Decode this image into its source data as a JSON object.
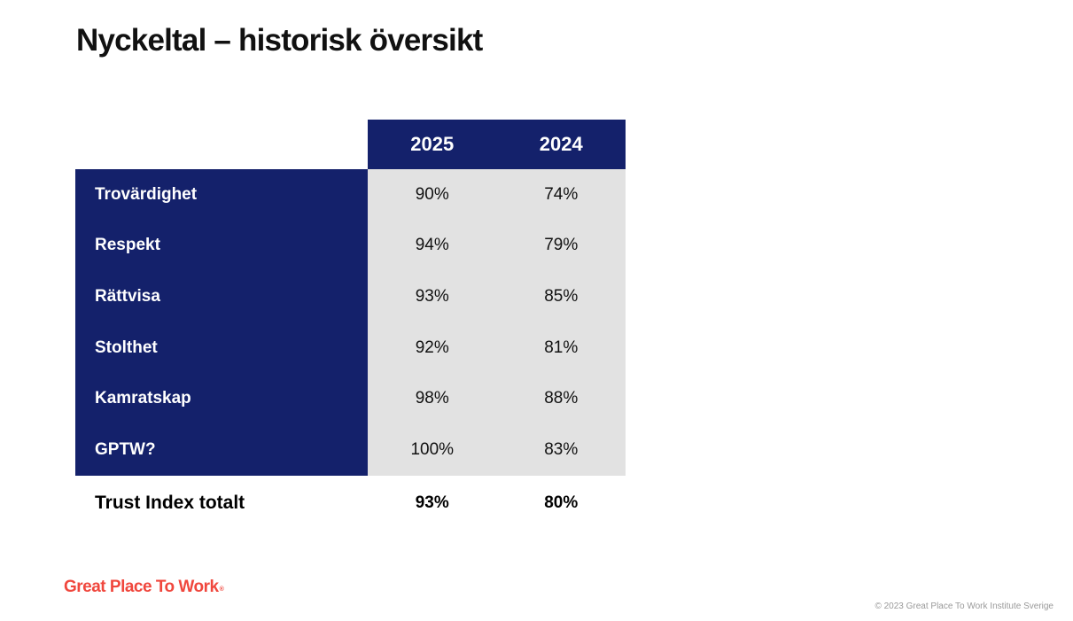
{
  "slide": {
    "title": "Nyckeltal – historisk översikt",
    "table": {
      "columns": [
        "2025",
        "2024"
      ],
      "rows": [
        {
          "label": "Trovärdighet",
          "values": [
            "90%",
            "74%"
          ]
        },
        {
          "label": "Respekt",
          "values": [
            "94%",
            "79%"
          ]
        },
        {
          "label": "Rättvisa",
          "values": [
            "93%",
            "85%"
          ]
        },
        {
          "label": "Stolthet",
          "values": [
            "92%",
            "81%"
          ]
        },
        {
          "label": "Kamratskap",
          "values": [
            "98%",
            "88%"
          ]
        },
        {
          "label": "GPTW?",
          "values": [
            "100%",
            "83%"
          ]
        }
      ],
      "total": {
        "label": "Trust Index totalt",
        "values": [
          "93%",
          "80%"
        ]
      }
    },
    "footer": {
      "logo_text": "Great Place To Work",
      "logo_mark": "®",
      "copyright": "© 2023 Great Place To Work Institute Sverige"
    },
    "colors": {
      "navy": "#14216b",
      "cell_gray": "#e2e2e2",
      "logo_red": "#f0473d",
      "copyright_gray": "#9a9a9a"
    }
  }
}
